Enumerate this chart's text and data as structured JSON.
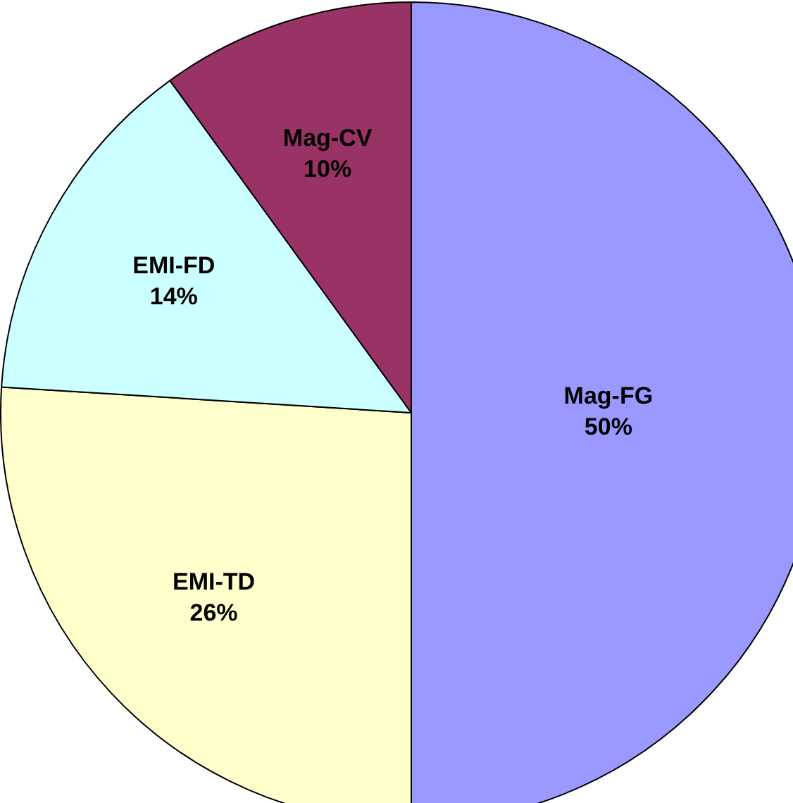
{
  "chart_data": {
    "type": "pie",
    "categories": [
      "Mag-FG",
      "EMI-TD",
      "EMI-FD",
      "Mag-CV"
    ],
    "values": [
      50,
      26,
      14,
      10
    ],
    "value_labels": [
      "50%",
      "26%",
      "14%",
      "10%"
    ],
    "colors": [
      "#9999ff",
      "#ffffcc",
      "#ccffff",
      "#993366"
    ],
    "legend": false
  }
}
